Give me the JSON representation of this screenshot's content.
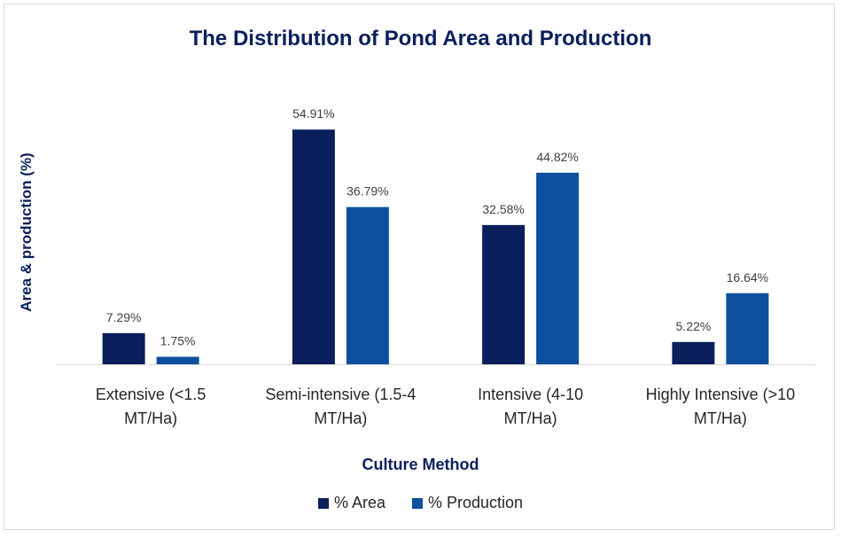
{
  "chart_data": {
    "type": "bar",
    "title": "The Distribution of Pond Area and Production",
    "xlabel": "Culture Method",
    "ylabel": "Area & production (%)",
    "categories": [
      [
        "Extensive (<1.5",
        "MT/Ha)"
      ],
      [
        "Semi-intensive (1.5-4",
        "MT/Ha)"
      ],
      [
        "Intensive (4-10",
        "MT/Ha)"
      ],
      [
        "Highly Intensive (>10",
        "MT/Ha)"
      ]
    ],
    "series": [
      {
        "name": "% Area",
        "color": "#0a1f5c",
        "values": [
          7.29,
          54.91,
          32.58,
          5.22
        ],
        "labels": [
          "7.29%",
          "54.91%",
          "32.58%",
          "5.22%"
        ]
      },
      {
        "name": "% Production",
        "color": "#0e4f9e",
        "values": [
          1.75,
          36.79,
          44.82,
          16.64
        ],
        "labels": [
          "1.75%",
          "36.79%",
          "44.82%",
          "16.64%"
        ]
      }
    ],
    "ylim": [
      0,
      60
    ],
    "grid": false,
    "legend_position": "bottom"
  }
}
